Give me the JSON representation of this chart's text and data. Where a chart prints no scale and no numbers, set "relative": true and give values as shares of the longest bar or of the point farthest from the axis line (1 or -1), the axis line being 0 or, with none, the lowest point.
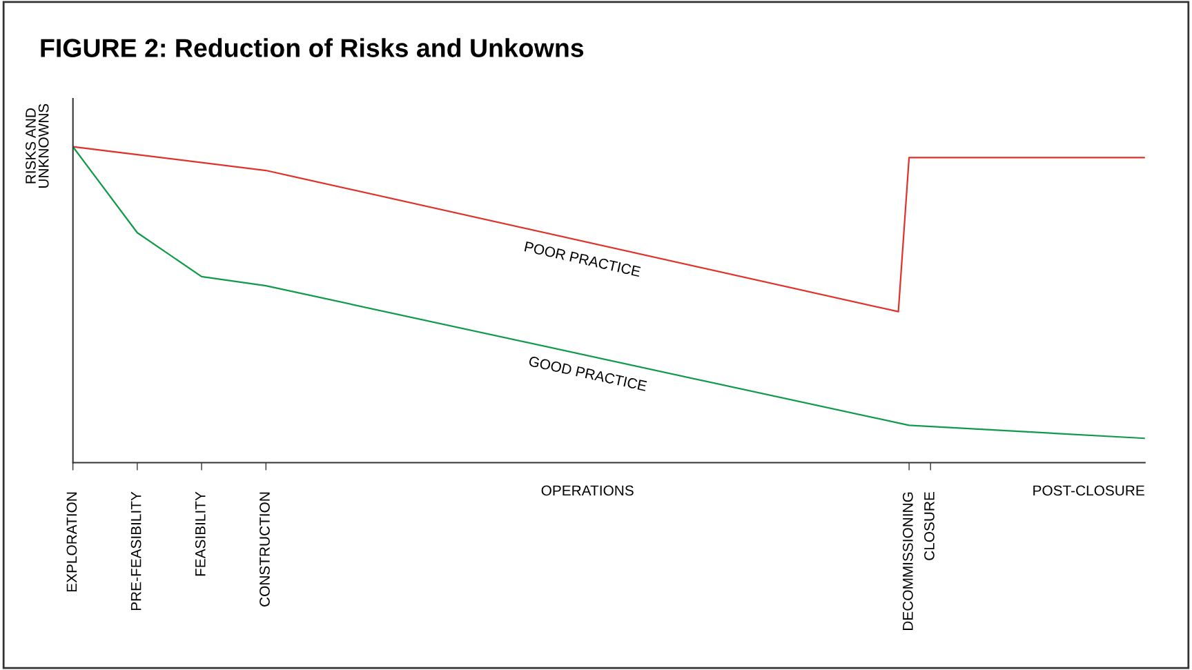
{
  "chart_data": {
    "type": "line",
    "title": "FIGURE 2: Reduction of Risks and Unkowns",
    "ylabel": "RISKS AND\nUNKNOWNS",
    "relative": true,
    "categories": [
      "EXPLORATION",
      null,
      null,
      null,
      null,
      null,
      "PRE-FEASIBILITY",
      null,
      null,
      null,
      null,
      null,
      "FEASIBILITY",
      null,
      null,
      null,
      null,
      null,
      "CONSTRUCTION",
      null,
      null,
      null,
      null,
      null,
      null,
      null,
      null,
      null,
      null,
      null,
      null,
      null,
      null,
      null,
      null,
      null,
      null,
      null,
      null,
      null,
      null,
      null,
      null,
      null,
      null,
      null,
      null,
      null,
      null,
      null,
      null,
      null,
      null,
      null,
      null,
      null,
      null,
      null,
      null,
      null,
      null,
      null,
      null,
      null,
      null,
      null,
      null,
      null,
      null,
      null,
      null,
      null,
      null,
      null,
      null,
      null,
      null,
      null,
      "DECOMMISSIONING",
      null,
      "CLOSURE",
      null,
      null,
      null,
      null,
      null,
      null,
      null,
      null,
      null,
      null,
      null,
      null,
      null,
      null,
      null,
      null,
      null,
      null,
      null,
      null
    ],
    "annotations": [
      "OPERATIONS",
      "POST-CLOSURE"
    ],
    "series": [
      {
        "name": "POOR PRACTICE",
        "color": "#e0312b",
        "values": [
          1.0,
          null,
          null,
          null,
          null,
          null,
          null,
          null,
          null,
          null,
          null,
          null,
          null,
          null,
          null,
          null,
          null,
          null,
          0.925,
          null,
          null,
          null,
          null,
          null,
          null,
          null,
          null,
          null,
          null,
          null,
          null,
          null,
          null,
          null,
          null,
          null,
          null,
          null,
          null,
          null,
          null,
          null,
          null,
          null,
          null,
          null,
          null,
          null,
          null,
          null,
          null,
          null,
          null,
          null,
          null,
          null,
          null,
          null,
          null,
          null,
          null,
          null,
          null,
          null,
          null,
          null,
          null,
          null,
          null,
          null,
          null,
          null,
          null,
          null,
          null,
          null,
          null,
          0.478,
          0.966,
          null,
          null,
          null,
          null,
          null,
          null,
          null,
          null,
          null,
          null,
          null,
          null,
          null,
          null,
          null,
          null,
          null,
          null,
          null,
          null,
          null,
          0.966
        ]
      },
      {
        "name": "GOOD PRACTICE",
        "color": "#0e9a48",
        "values": [
          1.0,
          null,
          null,
          null,
          null,
          null,
          0.728,
          null,
          null,
          null,
          null,
          null,
          0.589,
          null,
          null,
          null,
          null,
          null,
          0.56,
          null,
          null,
          null,
          null,
          null,
          null,
          null,
          null,
          null,
          null,
          null,
          null,
          null,
          null,
          null,
          null,
          null,
          null,
          null,
          null,
          null,
          null,
          null,
          null,
          null,
          null,
          null,
          null,
          null,
          null,
          null,
          null,
          null,
          null,
          null,
          null,
          null,
          null,
          null,
          null,
          null,
          null,
          null,
          null,
          null,
          null,
          null,
          null,
          null,
          null,
          null,
          null,
          null,
          null,
          null,
          null,
          null,
          null,
          null,
          0.118,
          null,
          null,
          null,
          null,
          null,
          null,
          null,
          null,
          null,
          null,
          null,
          null,
          null,
          null,
          null,
          null,
          null,
          null,
          null,
          null,
          null,
          0.077
        ]
      }
    ]
  }
}
